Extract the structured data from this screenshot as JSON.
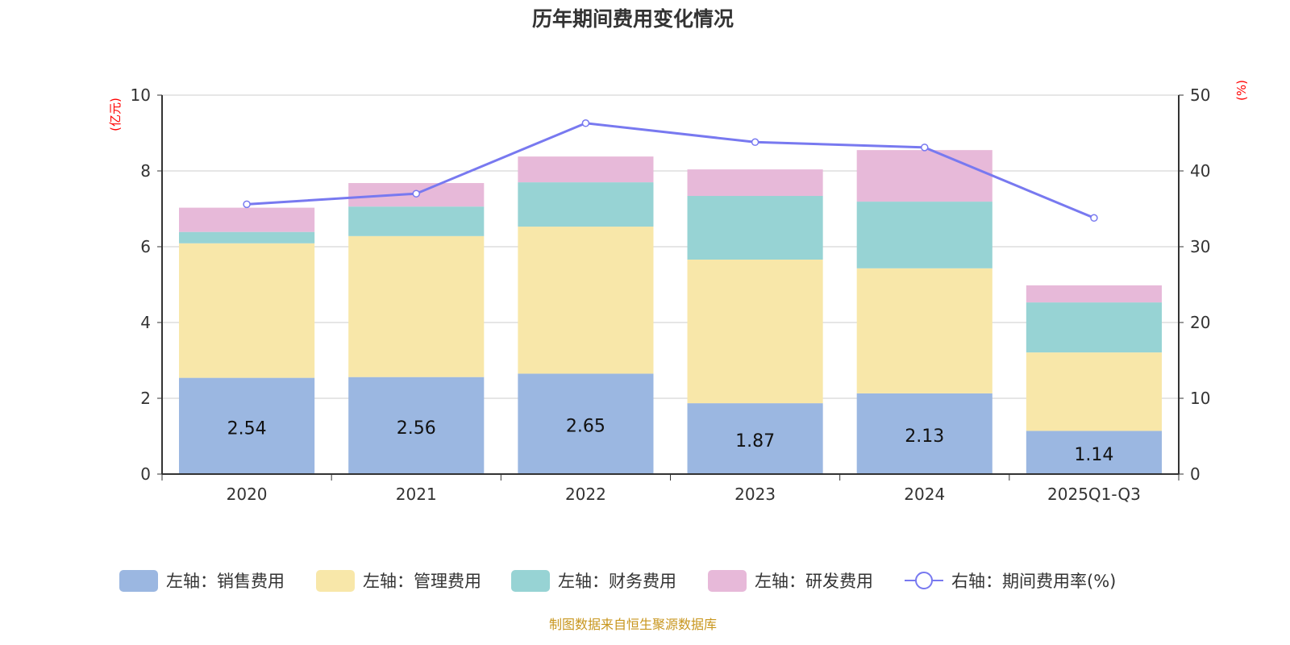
{
  "chart_data": {
    "type": "bar",
    "title": "历年期间费用变化情况",
    "categories": [
      "2020",
      "2021",
      "2022",
      "2023",
      "2024",
      "2025Q1-Q3"
    ],
    "ylabel_left": "(亿元)",
    "ylabel_right": "(%)",
    "ylim_left": [
      0,
      10
    ],
    "ylim_right": [
      0,
      50
    ],
    "yticks_left": [
      0,
      2,
      4,
      6,
      8,
      10
    ],
    "yticks_right": [
      0,
      10,
      20,
      30,
      40,
      50
    ],
    "grid": true,
    "legend_placement": "bottom",
    "series": [
      {
        "name": "左轴：销售费用",
        "type": "bar",
        "color": "#9bb7e1",
        "values": [
          2.54,
          2.56,
          2.65,
          1.87,
          2.13,
          1.14
        ],
        "show_labels": true
      },
      {
        "name": "左轴：管理费用",
        "type": "bar",
        "color": "#f8e7a9",
        "values": [
          3.55,
          3.72,
          3.88,
          3.79,
          3.3,
          2.07
        ]
      },
      {
        "name": "左轴：财务费用",
        "type": "bar",
        "color": "#97d3d4",
        "values": [
          0.3,
          0.78,
          1.17,
          1.68,
          1.76,
          1.32
        ]
      },
      {
        "name": "左轴：研发费用",
        "type": "bar",
        "color": "#e7b9d9",
        "values": [
          0.64,
          0.62,
          0.68,
          0.7,
          1.36,
          0.45
        ]
      },
      {
        "name": "右轴：期间费用率(%)",
        "type": "line",
        "axis": "right",
        "color": "#7879f0",
        "values": [
          35.6,
          37.0,
          46.3,
          43.8,
          43.1,
          33.8
        ]
      }
    ]
  },
  "source": "制图数据来自恒生聚源数据库"
}
